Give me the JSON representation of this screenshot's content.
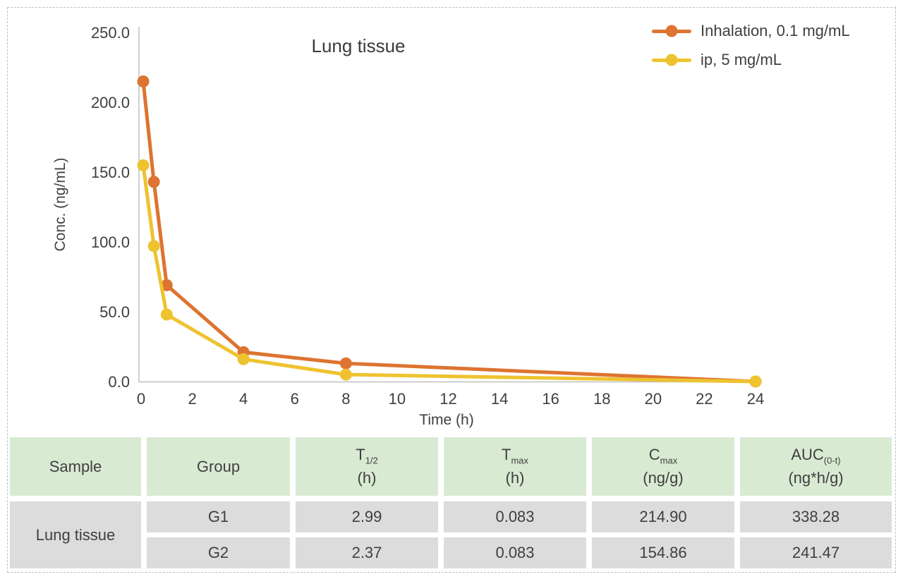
{
  "page": {
    "background": "#ffffff",
    "border_color": "#bdbdbd"
  },
  "chart_data": {
    "type": "line",
    "title": "Lung tissue",
    "xlabel": "Time (h)",
    "ylabel": "Conc. (ng/mL)",
    "xlim": [
      0,
      24
    ],
    "ylim": [
      0,
      250
    ],
    "x_ticks": [
      0,
      2,
      4,
      6,
      8,
      10,
      12,
      14,
      16,
      18,
      20,
      22,
      24
    ],
    "x_tick_labels": [
      "0",
      "2",
      "4",
      "6",
      "8",
      "10",
      "12",
      "14",
      "16",
      "18",
      "20",
      "22",
      "24"
    ],
    "y_ticks": [
      0,
      50,
      100,
      150,
      200,
      250
    ],
    "y_tick_labels": [
      "0.0",
      "50.0",
      "100.0",
      "150.0",
      "200.0",
      "250.0"
    ],
    "grid": false,
    "legend_position": "top-right",
    "axis_color": "#bfbfbf",
    "text_color": "#3f3f3f",
    "series": [
      {
        "name": "Inhalation, 0.1 mg/mL",
        "color": "#dd7431",
        "x": [
          0.083,
          0.5,
          1,
          4,
          8,
          24
        ],
        "y": [
          214.9,
          143,
          69,
          21,
          13,
          0
        ]
      },
      {
        "name": "ip, 5 mg/mL",
        "color": "#eec32f",
        "x": [
          0.083,
          0.5,
          1,
          4,
          8,
          24
        ],
        "y": [
          154.86,
          97,
          48,
          16,
          5,
          0
        ]
      }
    ]
  },
  "table": {
    "header_bg": "#d9ead3",
    "row_bg": "#dcdcdc",
    "columns": [
      {
        "label": "Sample"
      },
      {
        "label": "Group"
      },
      {
        "base": "T",
        "sub": "1/2",
        "unit": "(h)"
      },
      {
        "base": "T",
        "sub": "max",
        "unit": "(h)"
      },
      {
        "base": "C",
        "sub": "max",
        "unit": "(ng/g)"
      },
      {
        "base": "AUC",
        "sub": "(0-t)",
        "unit": "(ng*h/g)"
      }
    ],
    "sample_label": "Lung tissue",
    "rows": [
      {
        "group": "G1",
        "t_half": "2.99",
        "t_max": "0.083",
        "c_max": "214.90",
        "auc": "338.28"
      },
      {
        "group": "G2",
        "t_half": "2.37",
        "t_max": "0.083",
        "c_max": "154.86",
        "auc": "241.47"
      }
    ]
  }
}
